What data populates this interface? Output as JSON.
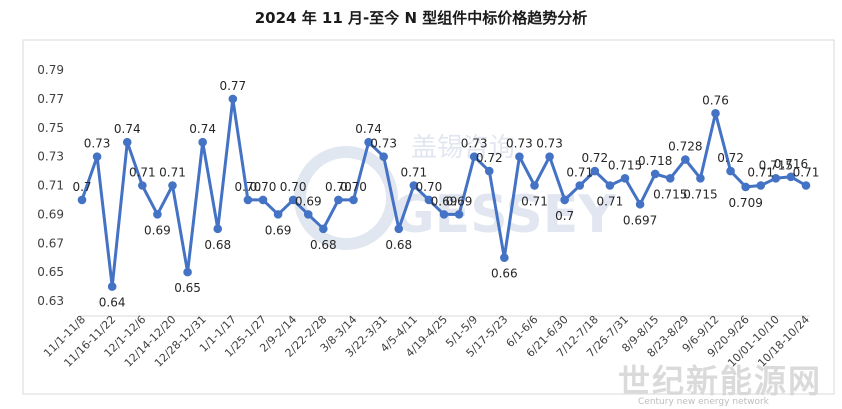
{
  "chart_data": {
    "type": "line",
    "title": "2024 年 11 月-至今 N 型组件中标价格趋势分析",
    "ylim": [
      0.63,
      0.79
    ],
    "yticks": [
      0.63,
      0.65,
      0.67,
      0.69,
      0.71,
      0.73,
      0.75,
      0.77,
      0.79
    ],
    "grid": false,
    "legend": "none",
    "line_color": "#4472C4",
    "x_labels_shown": [
      "11/1-11/8",
      "11/16-11/22",
      "12/1-12/6",
      "12/14-12/20",
      "12/28-12/31",
      "1/1-1/17",
      "1/25-1/27",
      "2/9-2/14",
      "2/22-2/28",
      "3/8-3/14",
      "3/22-3/31",
      "4/5-4/11",
      "4/19-4/25",
      "5/1-5/9",
      "5/17-5/23",
      "6/1-6/6",
      "6/21-6/30",
      "7/12-7/18",
      "7/26-7/31",
      "8/9-8/15",
      "8/23-8/29",
      "9/6-9/12",
      "9/20-9/26",
      "10/01-10/10",
      "10/18-10/24"
    ],
    "values": [
      0.7,
      0.73,
      0.64,
      0.74,
      0.71,
      0.69,
      0.71,
      0.65,
      0.74,
      0.68,
      0.77,
      0.7,
      0.7,
      0.69,
      0.7,
      0.69,
      0.68,
      0.7,
      0.7,
      0.74,
      0.73,
      0.68,
      0.71,
      0.7,
      0.69,
      0.69,
      0.73,
      0.72,
      0.66,
      0.73,
      0.71,
      0.73,
      0.7,
      0.71,
      0.72,
      0.71,
      0.715,
      0.697,
      0.718,
      0.715,
      0.728,
      0.715,
      0.76,
      0.72,
      0.709,
      0.71,
      0.715,
      0.716,
      0.71
    ],
    "point_labels": [
      "0.7",
      "0.73",
      "0.64",
      "0.74",
      "0.71",
      "0.69",
      "0.71",
      "0.65",
      "0.74",
      "0.68",
      "0.77",
      "0.70",
      "0.70",
      "0.69",
      "0.70",
      "0.69",
      "0.68",
      "0.70",
      "0.70",
      "0.74",
      "0.73",
      "0.68",
      "0.71",
      "0.70",
      "0.69",
      "0.69",
      "0.73",
      "0.72",
      "0.66",
      "0.73",
      "0.71",
      "0.73",
      "0.7",
      "0.71",
      "0.72",
      "0.71",
      "0.715",
      "0.697",
      "0.718",
      "0.715",
      "0.728",
      "0.715",
      "0.76",
      "0.72",
      "0.709",
      "0.71",
      "0.715",
      "0.716",
      "0.71"
    ]
  },
  "watermark": {
    "brand_cn": "盖锡咨询",
    "brand_en": "GESSEY"
  },
  "footer_watermark": {
    "cn": "世纪新能源网",
    "en": "Century new energy network"
  }
}
